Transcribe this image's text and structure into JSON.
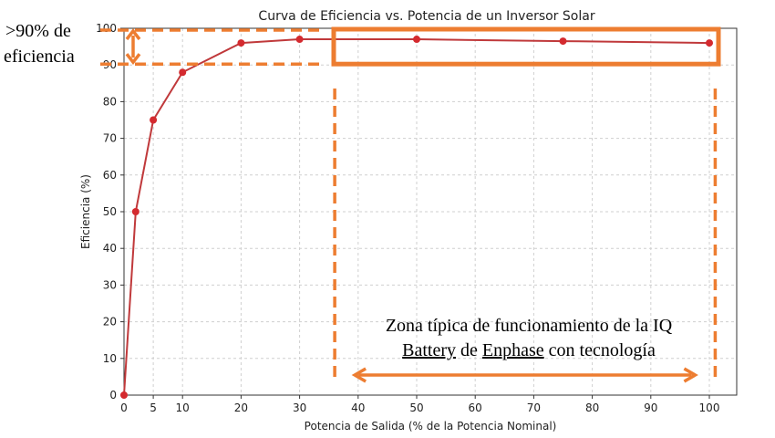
{
  "chart_data": {
    "type": "line",
    "title": "Curva de Eficiencia vs. Potencia de un Inversor Solar",
    "xlabel": "Potencia de Salida (% de la Potencia Nominal)",
    "ylabel": "Eficiencia (%)",
    "xlim": [
      0,
      105
    ],
    "ylim": [
      0,
      100
    ],
    "x_ticks": [
      0,
      5,
      10,
      20,
      30,
      40,
      50,
      60,
      70,
      80,
      90,
      100
    ],
    "y_ticks": [
      0,
      10,
      20,
      30,
      40,
      50,
      60,
      70,
      80,
      90,
      100
    ],
    "grid": true,
    "series": [
      {
        "x": [
          0,
          2,
          5,
          10,
          20,
          30,
          50,
          75,
          100
        ],
        "values": [
          0,
          50,
          75,
          88,
          96,
          97,
          97,
          96.5,
          96
        ]
      }
    ],
    "colors": {
      "line": "#c0393b",
      "marker": "#d42a2f",
      "annotation": "#ed7d31"
    },
    "annotations": {
      "efficiency_label_line1": ">90% de",
      "efficiency_label_line2": "eficiencia",
      "zone_label_line1": "Zona típica de funcionamiento de la IQ",
      "zone_label_line2_a": "Battery",
      "zone_label_line2_b": " de ",
      "zone_label_line2_c": "Enphase",
      "zone_label_line2_d": " con tecnología",
      "band_y_range": [
        90,
        100
      ],
      "zone_x_range": [
        36,
        101
      ]
    }
  }
}
